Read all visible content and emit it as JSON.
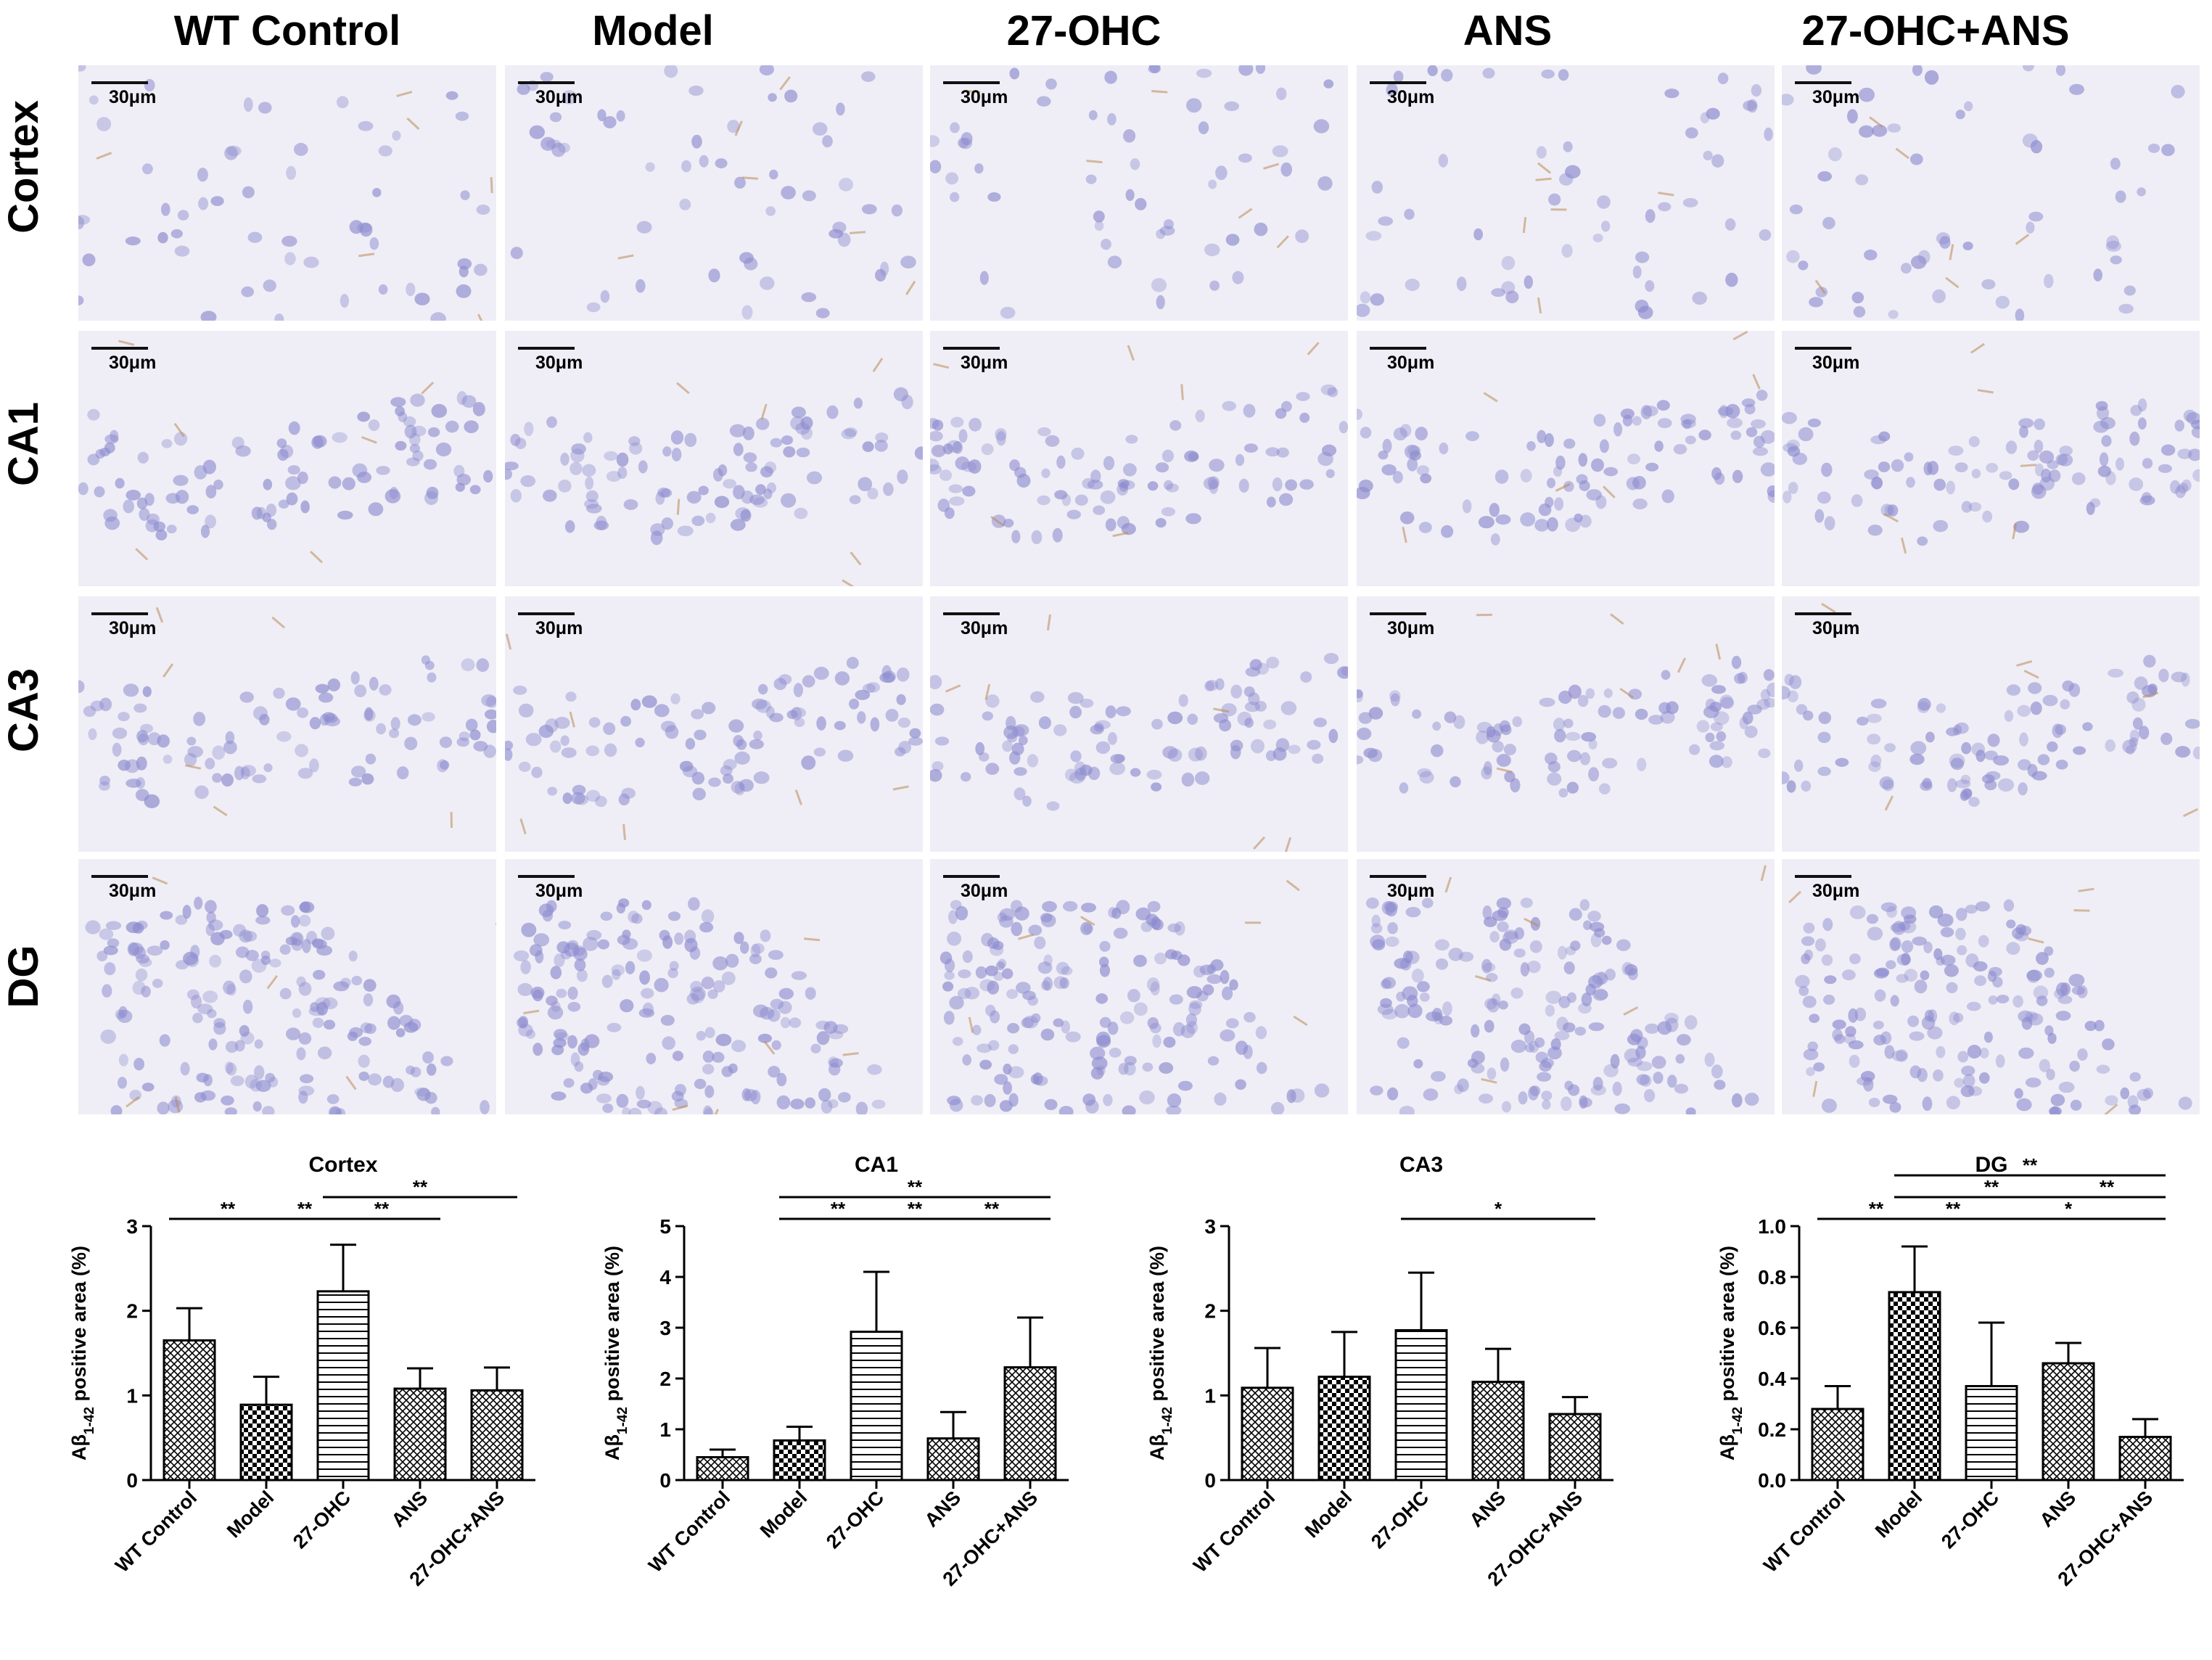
{
  "columns": [
    "WT Control",
    "Model",
    "27-OHC",
    "ANS",
    "27-OHC+ANS"
  ],
  "rows": [
    "Cortex",
    "CA1",
    "CA3",
    "DG"
  ],
  "scale_bar_label": "30μm",
  "colors": {
    "nucleus": "#8e8ccf",
    "tissue": "#efeef6",
    "stain": "#b98a55",
    "bar_stroke": "#000000"
  },
  "chart_data": [
    {
      "type": "bar",
      "title": "Cortex",
      "ylabel": "Aβ1-42 positive area (%)",
      "ylabel_parts": [
        "Aβ",
        "1-42",
        " positive area (%)"
      ],
      "categories": [
        "WT Control",
        "Model",
        "27-OHC",
        "ANS",
        "27-OHC+ANS"
      ],
      "values": [
        1.65,
        0.89,
        2.23,
        1.08,
        1.06
      ],
      "errors": [
        0.38,
        0.33,
        0.55,
        0.24,
        0.27
      ],
      "patterns": [
        "crosshatch",
        "checker",
        "horizontal",
        "crosshatch",
        "crosshatch"
      ],
      "ylim": [
        0,
        3
      ],
      "yticks": [
        0,
        1,
        2,
        3
      ],
      "ytick_labels": [
        "0",
        "1",
        "2",
        "3"
      ],
      "significance": [
        {
          "from": 0,
          "to": 1,
          "label": "**",
          "level": 0
        },
        {
          "from": 1,
          "to": 2,
          "label": "**",
          "level": 0
        },
        {
          "from": 2,
          "to": 3,
          "label": "**",
          "level": 0
        },
        {
          "from": 2,
          "to": 4,
          "label": "**",
          "level": 1
        }
      ]
    },
    {
      "type": "bar",
      "title": "CA1",
      "ylabel": "Aβ1-42 positive area (%)",
      "ylabel_parts": [
        "Aβ",
        "1-42",
        " positive area (%)"
      ],
      "categories": [
        "WT Control",
        "Model",
        "27-OHC",
        "ANS",
        "27-OHC+ANS"
      ],
      "values": [
        0.45,
        0.78,
        2.92,
        0.82,
        2.22
      ],
      "errors": [
        0.15,
        0.27,
        1.18,
        0.52,
        0.98
      ],
      "patterns": [
        "crosshatch",
        "checker",
        "horizontal",
        "crosshatch",
        "crosshatch"
      ],
      "ylim": [
        0,
        5
      ],
      "yticks": [
        0,
        1,
        2,
        3,
        4,
        5
      ],
      "ytick_labels": [
        "0",
        "1",
        "2",
        "3",
        "4",
        "5"
      ],
      "significance": [
        {
          "from": 1,
          "to": 2,
          "label": "**",
          "level": 0
        },
        {
          "from": 2,
          "to": 3,
          "label": "**",
          "level": 0
        },
        {
          "from": 3,
          "to": 4,
          "label": "**",
          "level": 0
        },
        {
          "from": 1,
          "to": 4,
          "label": "**",
          "level": 1
        }
      ]
    },
    {
      "type": "bar",
      "title": "CA3",
      "ylabel": "Aβ1-42 positive area (%)",
      "ylabel_parts": [
        "Aβ",
        "1-42",
        " positive area (%)"
      ],
      "categories": [
        "WT Control",
        "Model",
        "27-OHC",
        "ANS",
        "27-OHC+ANS"
      ],
      "values": [
        1.09,
        1.22,
        1.77,
        1.16,
        0.78
      ],
      "errors": [
        0.47,
        0.53,
        0.68,
        0.39,
        0.2
      ],
      "patterns": [
        "crosshatch",
        "checker",
        "horizontal",
        "crosshatch",
        "crosshatch"
      ],
      "ylim": [
        0,
        3
      ],
      "yticks": [
        0,
        1,
        2,
        3
      ],
      "ytick_labels": [
        "0",
        "1",
        "2",
        "3"
      ],
      "significance": [
        {
          "from": 2,
          "to": 4,
          "label": "*",
          "level": 0
        }
      ]
    },
    {
      "type": "bar",
      "title": "DG",
      "ylabel": "Aβ1-42 positive area (%)",
      "ylabel_parts": [
        "Aβ",
        "1-42",
        " positive area (%)"
      ],
      "categories": [
        "WT Control",
        "Model",
        "27-OHC",
        "ANS",
        "27-OHC+ANS"
      ],
      "values": [
        0.28,
        0.74,
        0.37,
        0.46,
        0.17
      ],
      "errors": [
        0.09,
        0.18,
        0.25,
        0.08,
        0.07
      ],
      "patterns": [
        "crosshatch",
        "checker",
        "horizontal",
        "crosshatch",
        "crosshatch"
      ],
      "ylim": [
        0,
        1.0
      ],
      "yticks": [
        0,
        0.2,
        0.4,
        0.6,
        0.8,
        1.0
      ],
      "ytick_labels": [
        "0.0",
        "0.2",
        "0.4",
        "0.6",
        "0.8",
        "1.0"
      ],
      "significance": [
        {
          "from": 0,
          "to": 1,
          "label": "**",
          "level": 0
        },
        {
          "from": 1,
          "to": 2,
          "label": "**",
          "level": 0
        },
        {
          "from": 2,
          "to": 4,
          "label": "*",
          "level": 0
        },
        {
          "from": 1,
          "to": 3,
          "label": "**",
          "level": 1
        },
        {
          "from": 3,
          "to": 4,
          "label": "**",
          "level": 1
        },
        {
          "from": 1,
          "to": 4,
          "label": "**",
          "level": 2
        }
      ]
    }
  ]
}
